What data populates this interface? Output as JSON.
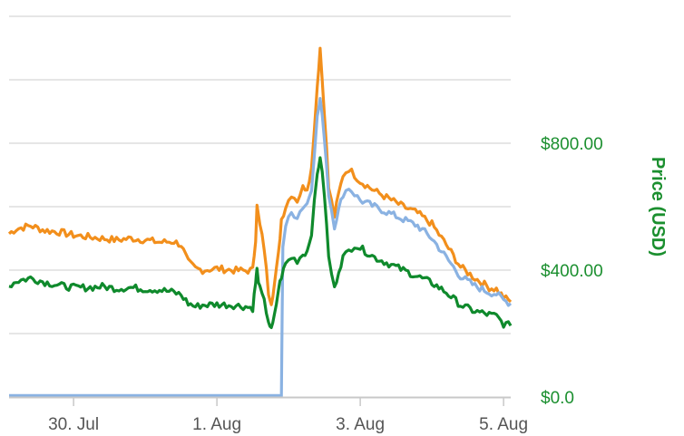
{
  "chart_data": {
    "type": "line",
    "title": "",
    "xlabel": "",
    "ylabel": "Price (USD)",
    "ylim": [
      0,
      1200
    ],
    "xlim": [
      29.55,
      33.05
    ],
    "grid": true,
    "y_ticks": [
      {
        "value": 0,
        "label": "$0.0"
      },
      {
        "value": 400,
        "label": "$400.00"
      },
      {
        "value": 800,
        "label": "$800.00"
      }
    ],
    "x_ticks": [
      {
        "value": 30,
        "label": "30. Jul"
      },
      {
        "value": 31,
        "label": "1. Aug"
      },
      {
        "value": 32,
        "label": "3. Aug"
      },
      {
        "value": 33,
        "label": "5. Aug"
      }
    ],
    "colors": {
      "axis_title": "#1b8f2f",
      "tick_label_y": "#1b8f2f",
      "tick_label_x": "#555555",
      "grid": "#d6d6d6"
    },
    "series": [
      {
        "color": "#f28f1c",
        "points": [
          [
            29.55,
            515
          ],
          [
            29.6,
            530
          ],
          [
            29.7,
            540
          ],
          [
            29.8,
            525
          ],
          [
            29.9,
            520
          ],
          [
            30.0,
            510
          ],
          [
            30.1,
            505
          ],
          [
            30.2,
            500
          ],
          [
            30.3,
            495
          ],
          [
            30.4,
            500
          ],
          [
            30.5,
            495
          ],
          [
            30.6,
            488
          ],
          [
            30.7,
            490
          ],
          [
            30.75,
            480
          ],
          [
            30.8,
            425
          ],
          [
            30.85,
            405
          ],
          [
            30.9,
            400
          ],
          [
            31.0,
            405
          ],
          [
            31.1,
            400
          ],
          [
            31.2,
            398
          ],
          [
            31.25,
            400
          ],
          [
            31.27,
            500
          ],
          [
            31.28,
            600
          ],
          [
            31.3,
            540
          ],
          [
            31.33,
            470
          ],
          [
            31.36,
            330
          ],
          [
            31.38,
            300
          ],
          [
            31.4,
            350
          ],
          [
            31.43,
            450
          ],
          [
            31.45,
            560
          ],
          [
            31.48,
            600
          ],
          [
            31.52,
            640
          ],
          [
            31.56,
            620
          ],
          [
            31.6,
            660
          ],
          [
            31.63,
            660
          ],
          [
            31.66,
            720
          ],
          [
            31.7,
            980
          ],
          [
            31.72,
            1100
          ],
          [
            31.75,
            900
          ],
          [
            31.78,
            660
          ],
          [
            31.82,
            570
          ],
          [
            31.85,
            640
          ],
          [
            31.88,
            700
          ],
          [
            31.92,
            720
          ],
          [
            31.96,
            700
          ],
          [
            32.0,
            680
          ],
          [
            32.1,
            650
          ],
          [
            32.2,
            625
          ],
          [
            32.3,
            600
          ],
          [
            32.4,
            580
          ],
          [
            32.5,
            545
          ],
          [
            32.6,
            480
          ],
          [
            32.7,
            410
          ],
          [
            32.8,
            375
          ],
          [
            32.85,
            360
          ],
          [
            32.9,
            345
          ],
          [
            32.95,
            340
          ],
          [
            33.0,
            315
          ],
          [
            33.05,
            300
          ]
        ]
      },
      {
        "color": "#8ab2e2",
        "points": [
          [
            29.55,
            5
          ],
          [
            29.7,
            5
          ],
          [
            29.9,
            5
          ],
          [
            30.1,
            5
          ],
          [
            30.3,
            5
          ],
          [
            30.5,
            5
          ],
          [
            30.7,
            5
          ],
          [
            30.9,
            5
          ],
          [
            31.1,
            5
          ],
          [
            31.3,
            5
          ],
          [
            31.45,
            5
          ],
          [
            31.46,
            480
          ],
          [
            31.48,
            540
          ],
          [
            31.52,
            580
          ],
          [
            31.56,
            570
          ],
          [
            31.6,
            600
          ],
          [
            31.63,
            610
          ],
          [
            31.66,
            660
          ],
          [
            31.7,
            880
          ],
          [
            31.72,
            940
          ],
          [
            31.75,
            820
          ],
          [
            31.78,
            640
          ],
          [
            31.82,
            540
          ],
          [
            31.85,
            590
          ],
          [
            31.88,
            640
          ],
          [
            31.92,
            660
          ],
          [
            31.96,
            640
          ],
          [
            32.0,
            620
          ],
          [
            32.1,
            600
          ],
          [
            32.2,
            580
          ],
          [
            32.3,
            560
          ],
          [
            32.4,
            540
          ],
          [
            32.5,
            500
          ],
          [
            32.6,
            440
          ],
          [
            32.7,
            380
          ],
          [
            32.8,
            350
          ],
          [
            32.85,
            340
          ],
          [
            32.9,
            330
          ],
          [
            32.95,
            325
          ],
          [
            33.0,
            305
          ],
          [
            33.05,
            295
          ]
        ]
      },
      {
        "color": "#0f8a2c",
        "points": [
          [
            29.55,
            350
          ],
          [
            29.6,
            365
          ],
          [
            29.7,
            375
          ],
          [
            29.8,
            362
          ],
          [
            29.9,
            352
          ],
          [
            30.0,
            345
          ],
          [
            30.1,
            345
          ],
          [
            30.2,
            348
          ],
          [
            30.3,
            342
          ],
          [
            30.4,
            345
          ],
          [
            30.5,
            340
          ],
          [
            30.6,
            338
          ],
          [
            30.7,
            330
          ],
          [
            30.75,
            322
          ],
          [
            30.8,
            295
          ],
          [
            30.85,
            285
          ],
          [
            30.9,
            290
          ],
          [
            31.0,
            292
          ],
          [
            31.1,
            290
          ],
          [
            31.2,
            285
          ],
          [
            31.25,
            280
          ],
          [
            31.27,
            360
          ],
          [
            31.28,
            400
          ],
          [
            31.3,
            340
          ],
          [
            31.33,
            300
          ],
          [
            31.36,
            240
          ],
          [
            31.38,
            210
          ],
          [
            31.4,
            250
          ],
          [
            31.43,
            340
          ],
          [
            31.45,
            380
          ],
          [
            31.48,
            420
          ],
          [
            31.52,
            440
          ],
          [
            31.56,
            430
          ],
          [
            31.6,
            450
          ],
          [
            31.63,
            460
          ],
          [
            31.66,
            520
          ],
          [
            31.7,
            700
          ],
          [
            31.72,
            760
          ],
          [
            31.75,
            640
          ],
          [
            31.78,
            440
          ],
          [
            31.82,
            340
          ],
          [
            31.85,
            400
          ],
          [
            31.88,
            440
          ],
          [
            31.92,
            460
          ],
          [
            31.96,
            480
          ],
          [
            32.0,
            470
          ],
          [
            32.1,
            440
          ],
          [
            32.2,
            420
          ],
          [
            32.3,
            400
          ],
          [
            32.4,
            380
          ],
          [
            32.5,
            360
          ],
          [
            32.6,
            330
          ],
          [
            32.7,
            290
          ],
          [
            32.8,
            270
          ],
          [
            32.85,
            265
          ],
          [
            32.9,
            260
          ],
          [
            32.95,
            255
          ],
          [
            33.0,
            230
          ],
          [
            33.05,
            225
          ]
        ]
      }
    ]
  }
}
